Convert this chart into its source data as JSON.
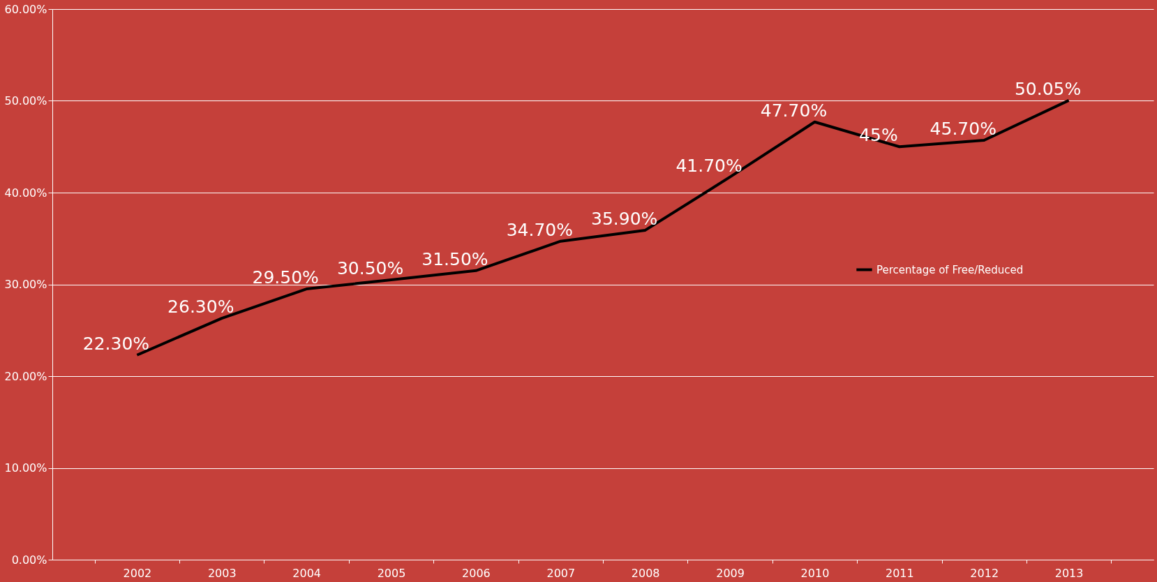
{
  "chart_data": {
    "type": "line",
    "categories": [
      "2002",
      "2003",
      "2004",
      "2005",
      "2006",
      "2007",
      "2008",
      "2009",
      "2010",
      "2011",
      "2012",
      "2013"
    ],
    "series": [
      {
        "name": "Percentage of Free/Reduced",
        "color": "#000000",
        "values": [
          22.3,
          26.3,
          29.5,
          30.5,
          31.5,
          34.7,
          35.9,
          41.7,
          47.7,
          45,
          45.7,
          50.05
        ],
        "value_labels": [
          "22.30%",
          "26.30%",
          "29.50%",
          "30.50%",
          "31.50%",
          "34.70%",
          "35.90%",
          "41.70%",
          "47.70%",
          "45%",
          "45.70%",
          "50.05%"
        ]
      }
    ],
    "ylim": [
      0,
      60
    ],
    "yticks": [
      {
        "value": 0,
        "label": "0.00%"
      },
      {
        "value": 10,
        "label": "10.00%"
      },
      {
        "value": 20,
        "label": "20.00%"
      },
      {
        "value": 30,
        "label": "30.00%"
      },
      {
        "value": 40,
        "label": "40.00%"
      },
      {
        "value": 50,
        "label": "50.00%"
      },
      {
        "value": 60,
        "label": "60.00%"
      }
    ],
    "grid": "y",
    "legend": "right",
    "marker": "none",
    "line_style": "solid"
  }
}
